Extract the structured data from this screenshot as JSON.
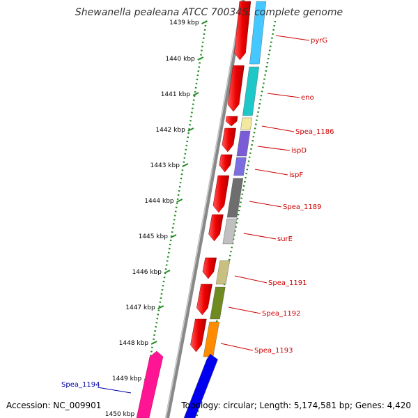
{
  "title": "Shewanella pealeana ATCC 700345, complete genome",
  "accession": "Accession: NC_009901",
  "topology": "Topology: circular; Length: 5,174,581 bp; Genes: 4,420",
  "ruler": [
    {
      "label": "1439 kbp"
    },
    {
      "label": "1440 kbp"
    },
    {
      "label": "1441 kbp"
    },
    {
      "label": "1442 kbp"
    },
    {
      "label": "1443 kbp"
    },
    {
      "label": "1444 kbp"
    },
    {
      "label": "1445 kbp"
    },
    {
      "label": "1446 kbp"
    },
    {
      "label": "1447 kbp"
    },
    {
      "label": "1448 kbp"
    },
    {
      "label": "1449 kbp"
    },
    {
      "label": "1450 kbp"
    }
  ],
  "genes": [
    {
      "name": "pyrG",
      "color": "#44c8ff",
      "label_color": "#cc0000",
      "strand": "forward"
    },
    {
      "name": "eno",
      "color": "#1ec8c8",
      "label_color": "#cc0000",
      "strand": "forward"
    },
    {
      "name": "Spea_1186",
      "color": "#f2e8a0",
      "label_color": "#cc0000",
      "strand": "forward"
    },
    {
      "name": "ispD",
      "color": "#7a5cd6",
      "label_color": "#cc0000",
      "strand": "forward"
    },
    {
      "name": "ispF",
      "color": "#7a6ee0",
      "label_color": "#cc0000",
      "strand": "forward"
    },
    {
      "name": "Spea_1189",
      "color": "#6e6e6e",
      "label_color": "#cc0000",
      "strand": "forward"
    },
    {
      "name": "surE",
      "color": "#c0c0c0",
      "label_color": "#cc0000",
      "strand": "forward"
    },
    {
      "name": "Spea_1191",
      "color": "#c8c080",
      "label_color": "#cc0000",
      "strand": "forward"
    },
    {
      "name": "Spea_1192",
      "color": "#6e8a20",
      "label_color": "#cc0000",
      "strand": "forward"
    },
    {
      "name": "Spea_1193",
      "color": "#ff8c00",
      "label_color": "#cc0000",
      "strand": "forward"
    },
    {
      "name": "Spea_1194",
      "color": "#0000ee",
      "label_color": "#0000aa",
      "strand": "reverse"
    }
  ],
  "colors": {
    "cds_forward": "#ee0000",
    "cds_reverse": "#ff1493",
    "ruler": "#228b22",
    "backbone": "#888888"
  }
}
